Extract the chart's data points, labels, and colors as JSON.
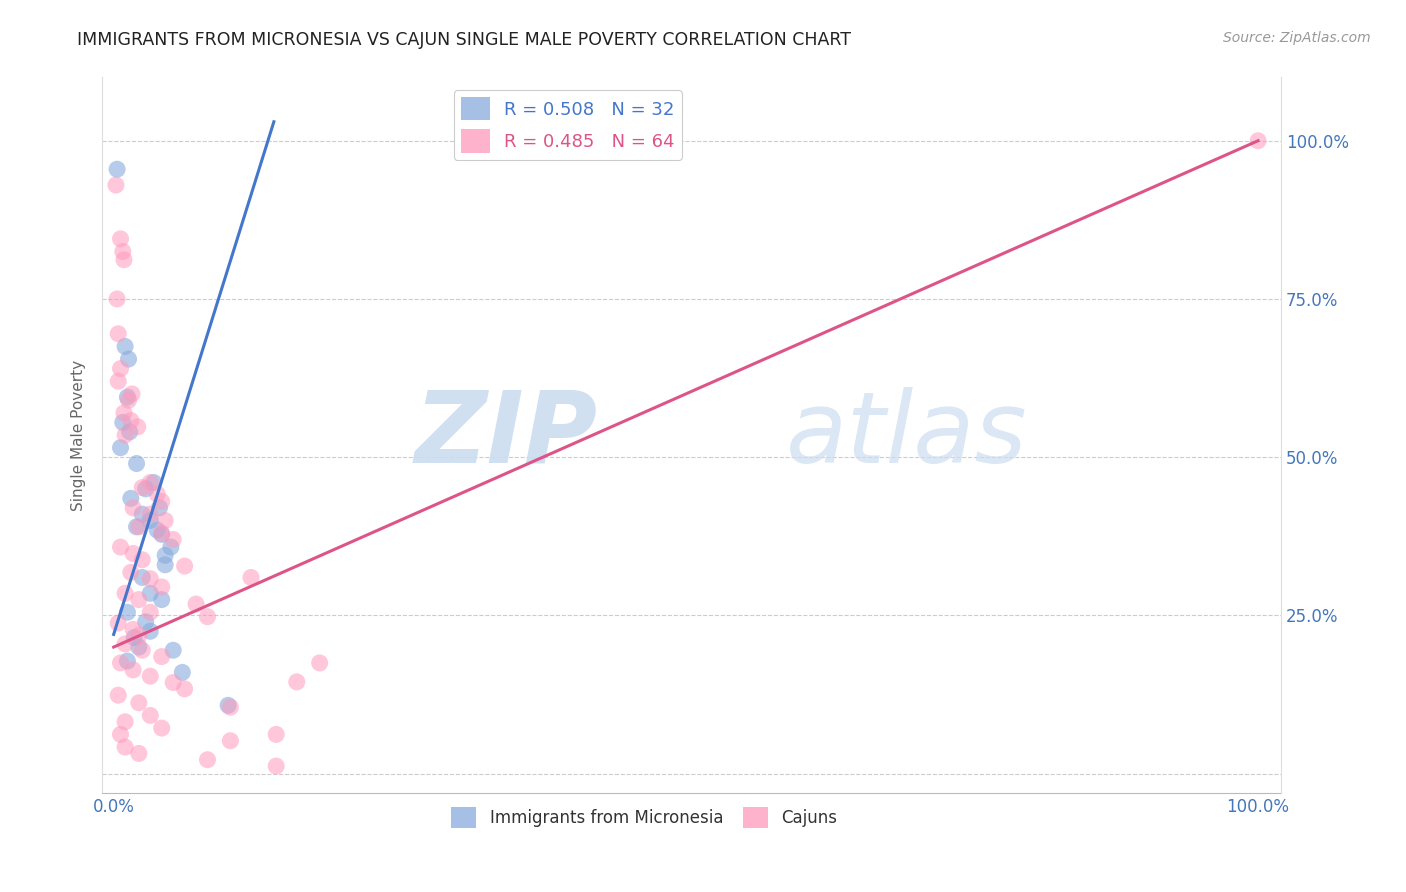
{
  "title": "IMMIGRANTS FROM MICRONESIA VS CAJUN SINGLE MALE POVERTY CORRELATION CHART",
  "source": "Source: ZipAtlas.com",
  "ylabel": "Single Male Poverty",
  "watermark_zip": "ZIP",
  "watermark_atlas": "atlas",
  "blue_label": "Immigrants from Micronesia",
  "pink_label": "Cajuns",
  "blue_R": 0.508,
  "blue_N": 32,
  "pink_R": 0.485,
  "pink_N": 64,
  "blue_color": "#88AADD",
  "pink_color": "#FF99BB",
  "blue_line_color": "#4477CC",
  "pink_line_color": "#DD5588",
  "background_color": "#FFFFFF",
  "grid_color": "#CCCCCC",
  "title_color": "#222222",
  "axis_tick_color": "#4477BB",
  "blue_scatter": [
    [
      0.003,
      0.955
    ],
    [
      0.01,
      0.675
    ],
    [
      0.013,
      0.655
    ],
    [
      0.012,
      0.595
    ],
    [
      0.008,
      0.555
    ],
    [
      0.014,
      0.54
    ],
    [
      0.006,
      0.515
    ],
    [
      0.02,
      0.49
    ],
    [
      0.035,
      0.46
    ],
    [
      0.028,
      0.45
    ],
    [
      0.015,
      0.435
    ],
    [
      0.04,
      0.42
    ],
    [
      0.025,
      0.41
    ],
    [
      0.032,
      0.4
    ],
    [
      0.02,
      0.39
    ],
    [
      0.038,
      0.385
    ],
    [
      0.042,
      0.378
    ],
    [
      0.05,
      0.358
    ],
    [
      0.045,
      0.345
    ],
    [
      0.045,
      0.33
    ],
    [
      0.025,
      0.31
    ],
    [
      0.032,
      0.285
    ],
    [
      0.042,
      0.275
    ],
    [
      0.012,
      0.255
    ],
    [
      0.028,
      0.24
    ],
    [
      0.032,
      0.225
    ],
    [
      0.018,
      0.215
    ],
    [
      0.022,
      0.2
    ],
    [
      0.052,
      0.195
    ],
    [
      0.012,
      0.178
    ],
    [
      0.06,
      0.16
    ],
    [
      0.1,
      0.108
    ]
  ],
  "pink_scatter": [
    [
      0.002,
      0.93
    ],
    [
      0.006,
      0.845
    ],
    [
      0.008,
      0.825
    ],
    [
      0.009,
      0.812
    ],
    [
      0.003,
      0.75
    ],
    [
      0.004,
      0.695
    ],
    [
      0.006,
      0.64
    ],
    [
      0.004,
      0.62
    ],
    [
      0.016,
      0.6
    ],
    [
      0.013,
      0.59
    ],
    [
      0.009,
      0.57
    ],
    [
      0.015,
      0.558
    ],
    [
      0.021,
      0.548
    ],
    [
      0.01,
      0.535
    ],
    [
      0.032,
      0.46
    ],
    [
      0.025,
      0.452
    ],
    [
      0.038,
      0.442
    ],
    [
      0.042,
      0.43
    ],
    [
      0.017,
      0.42
    ],
    [
      0.032,
      0.41
    ],
    [
      0.045,
      0.4
    ],
    [
      0.022,
      0.39
    ],
    [
      0.042,
      0.38
    ],
    [
      0.052,
      0.37
    ],
    [
      0.006,
      0.358
    ],
    [
      0.017,
      0.348
    ],
    [
      0.025,
      0.338
    ],
    [
      0.062,
      0.328
    ],
    [
      0.015,
      0.318
    ],
    [
      0.032,
      0.308
    ],
    [
      0.042,
      0.295
    ],
    [
      0.01,
      0.285
    ],
    [
      0.022,
      0.275
    ],
    [
      0.072,
      0.268
    ],
    [
      0.032,
      0.255
    ],
    [
      0.082,
      0.248
    ],
    [
      0.004,
      0.238
    ],
    [
      0.017,
      0.228
    ],
    [
      0.022,
      0.218
    ],
    [
      0.01,
      0.205
    ],
    [
      0.025,
      0.195
    ],
    [
      0.042,
      0.185
    ],
    [
      0.006,
      0.175
    ],
    [
      0.017,
      0.164
    ],
    [
      0.032,
      0.154
    ],
    [
      0.052,
      0.144
    ],
    [
      0.062,
      0.134
    ],
    [
      0.004,
      0.124
    ],
    [
      0.022,
      0.112
    ],
    [
      0.102,
      0.105
    ],
    [
      0.032,
      0.092
    ],
    [
      0.01,
      0.082
    ],
    [
      0.042,
      0.072
    ],
    [
      0.006,
      0.062
    ],
    [
      0.142,
      0.062
    ],
    [
      0.102,
      0.052
    ],
    [
      0.01,
      0.042
    ],
    [
      0.022,
      0.032
    ],
    [
      0.082,
      0.022
    ],
    [
      0.142,
      0.012
    ],
    [
      0.18,
      0.175
    ],
    [
      0.16,
      0.145
    ],
    [
      0.12,
      0.31
    ],
    [
      1.0,
      1.0
    ]
  ],
  "blue_line_x": [
    0.0,
    0.14
  ],
  "blue_line_y": [
    0.22,
    1.03
  ],
  "pink_line_x": [
    0.0,
    1.0
  ],
  "pink_line_y": [
    0.2,
    1.0
  ],
  "xlim": [
    -0.01,
    1.02
  ],
  "ylim": [
    -0.03,
    1.1
  ],
  "xtick_positions": [
    0.0,
    0.5,
    1.0
  ],
  "xtick_labels": [
    "0.0%",
    "",
    "100.0%"
  ],
  "ytick_positions": [
    0.0,
    0.25,
    0.5,
    0.75,
    1.0
  ],
  "right_ytick_labels": [
    "",
    "25.0%",
    "50.0%",
    "75.0%",
    "100.0%"
  ]
}
